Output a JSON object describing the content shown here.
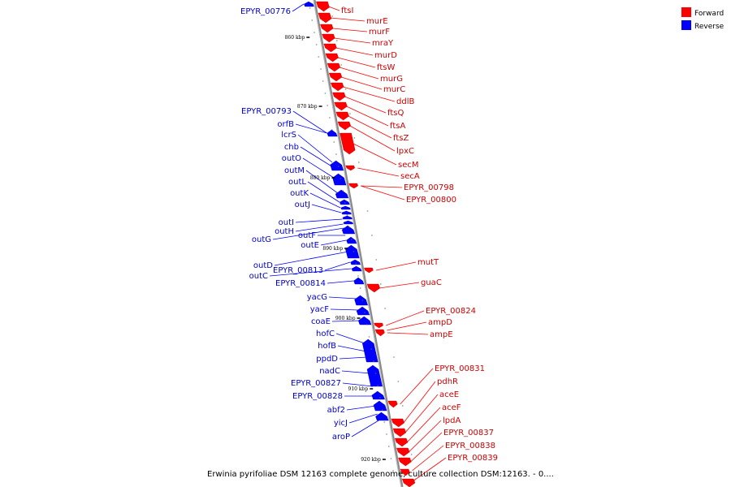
{
  "caption": "Erwinia pyrifoliae DSM 12163 complete genome, culture collection DSM:12163. - 0....",
  "legend": [
    {
      "label": "Forward",
      "color": "#ff0000"
    },
    {
      "label": "Reverse",
      "color": "#0000ff"
    }
  ],
  "colors": {
    "forward": "#ff0000",
    "reverse": "#0000ff",
    "axis": "#888888"
  },
  "ticks": [
    "860 kbp",
    "870 kbp",
    "880 kbp",
    "890 kbp",
    "900 kbp",
    "910 kbp",
    "920 kbp"
  ],
  "genes": {
    "forward": [
      "ftsI",
      "murE",
      "murF",
      "mraY",
      "murD",
      "ftsW",
      "murG",
      "murC",
      "ddlB",
      "ftsQ",
      "ftsA",
      "ftsZ",
      "lpxC",
      "secM",
      "secA",
      "EPYR_00798",
      "EPYR_00800",
      "mutT",
      "guaC",
      "EPYR_00824",
      "ampD",
      "ampE",
      "EPYR_00831",
      "pdhR",
      "aceE",
      "aceF",
      "lpdA",
      "EPYR_00837",
      "EPYR_00838",
      "EPYR_00839"
    ],
    "reverse": [
      "EPYR_00776",
      "EPYR_00793",
      "orfB",
      "lcrS",
      "chb",
      "outO",
      "outM",
      "outL",
      "outK",
      "outJ",
      "outI",
      "outH",
      "outG",
      "outF",
      "outE",
      "outD",
      "EPYR_00813",
      "outC",
      "EPYR_00814",
      "yacG",
      "yacF",
      "coaE",
      "hofC",
      "hofB",
      "ppdD",
      "nadC",
      "EPYR_00827",
      "EPYR_00828",
      "abf2",
      "yicJ",
      "aroP"
    ]
  }
}
